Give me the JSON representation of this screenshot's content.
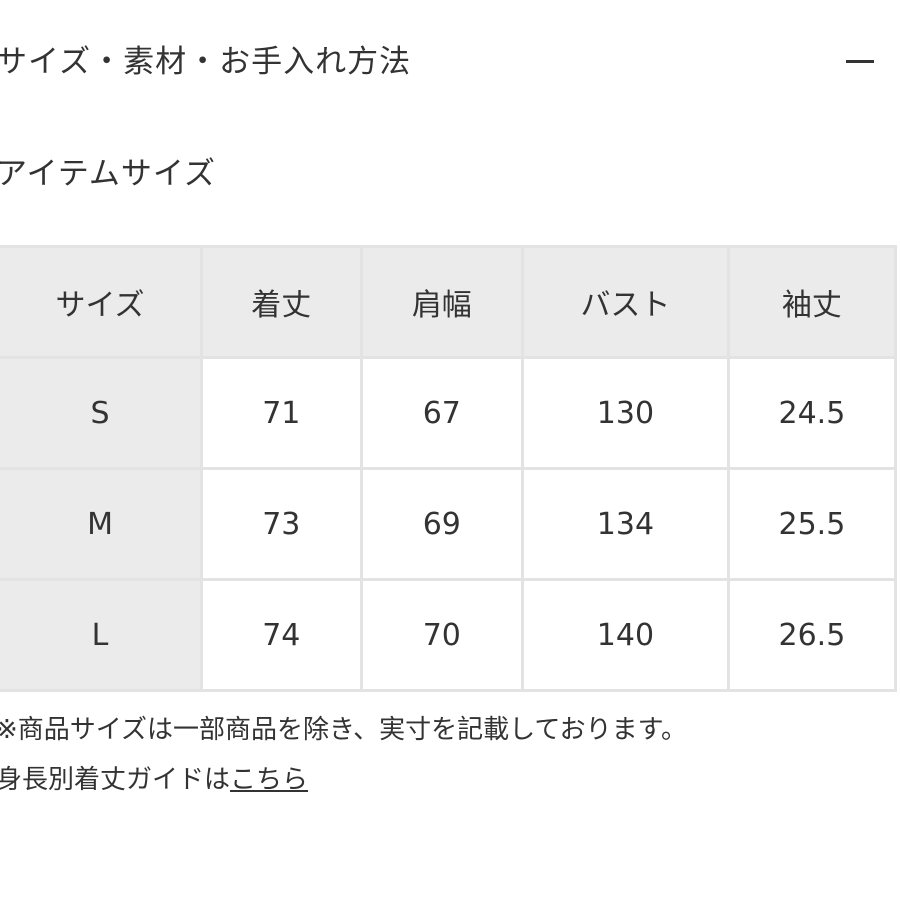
{
  "accordion": {
    "title": "サイズ・素材・お手入れ方法",
    "toggle": "−"
  },
  "section_title": "アイテムサイズ",
  "table": {
    "headers": [
      "サイズ",
      "着丈",
      "肩幅",
      "バスト",
      "袖丈"
    ],
    "rows": [
      [
        "S",
        "71",
        "67",
        "130",
        "24.5"
      ],
      [
        "M",
        "73",
        "69",
        "134",
        "25.5"
      ],
      [
        "L",
        "74",
        "70",
        "140",
        "26.5"
      ]
    ]
  },
  "note": "※商品サイズは一部商品を除き、実寸を記載しております。",
  "guide": {
    "text": "身長別着丈ガイドは",
    "link": "こちら"
  }
}
